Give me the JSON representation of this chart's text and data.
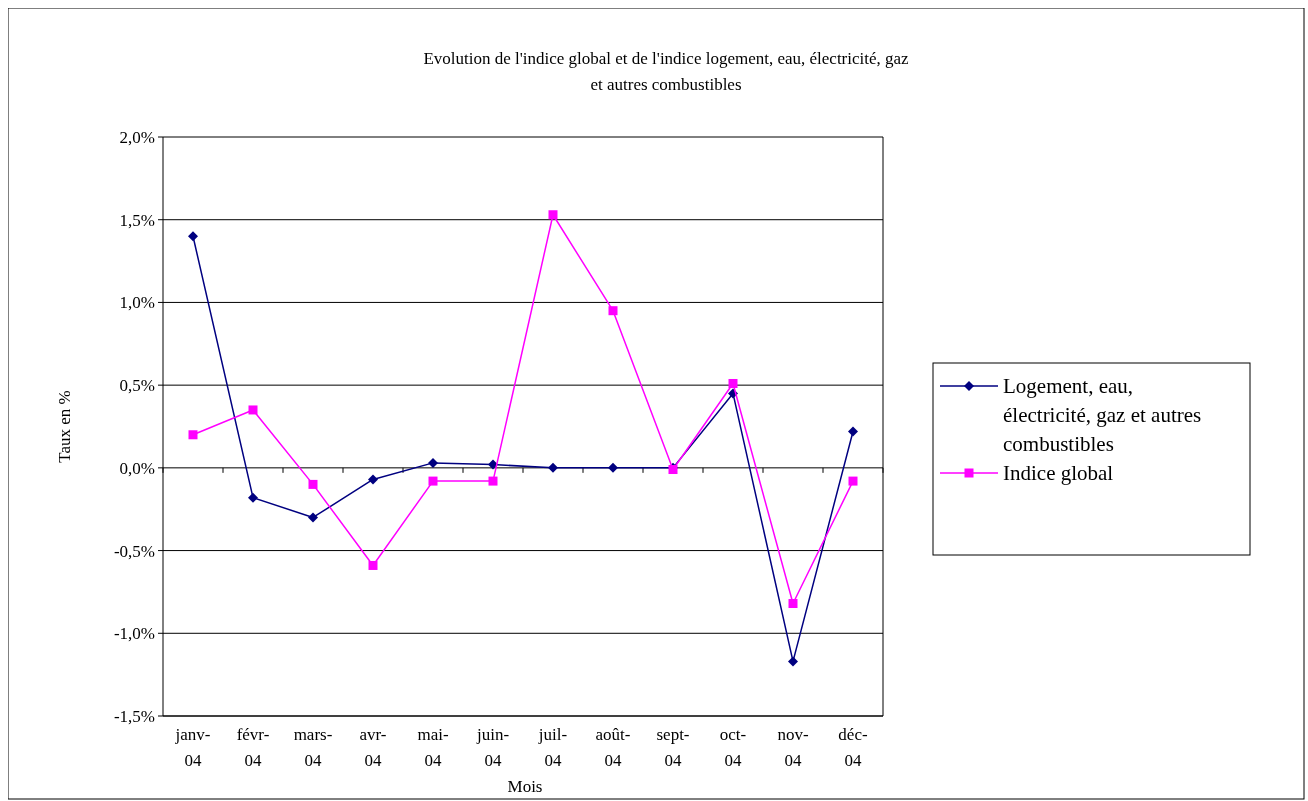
{
  "chart_data": {
    "type": "line",
    "title": "Evolution de l'indice global et de l'indice logement, eau, électricité, gaz et autres combustibles",
    "xlabel": "Mois",
    "ylabel": "Taux en %",
    "categories": [
      "janv-04",
      "févr-04",
      "mars-04",
      "avr-04",
      "mai-04",
      "juin-04",
      "juil-04",
      "août-04",
      "sept-04",
      "oct-04",
      "nov-04",
      "déc-04"
    ],
    "series": [
      {
        "name": "Logement, eau, électricité, gaz et autres combustibles",
        "color": "#000080",
        "marker": "diamond",
        "values": [
          1.4,
          -0.18,
          -0.3,
          -0.07,
          0.03,
          0.02,
          0.0,
          0.0,
          0.0,
          0.45,
          -1.17,
          0.22
        ]
      },
      {
        "name": "Indice global",
        "color": "#ff00ff",
        "marker": "square",
        "values": [
          0.2,
          0.35,
          -0.1,
          -0.59,
          -0.08,
          -0.08,
          1.53,
          0.95,
          -0.01,
          0.51,
          -0.82,
          -0.08
        ]
      }
    ],
    "ylim": [
      -1.5,
      2.0
    ],
    "yticks": [
      {
        "value": -1.5,
        "label": "-1,5%"
      },
      {
        "value": -1.0,
        "label": "-1,0%"
      },
      {
        "value": -0.5,
        "label": "-0,5%"
      },
      {
        "value": 0,
        "label": "0,0%"
      },
      {
        "value": 0.5,
        "label": "0,5%"
      },
      {
        "value": 1.0,
        "label": "1,0%"
      },
      {
        "value": 1.5,
        "label": "1,5%"
      },
      {
        "value": 2.0,
        "label": "2,0%"
      }
    ],
    "grid": "y",
    "legend": "right",
    "line_style": "solid"
  }
}
